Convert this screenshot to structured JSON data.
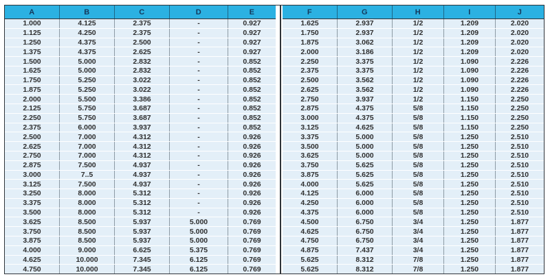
{
  "table": {
    "title": "dimension-spec-table",
    "headers": [
      "A",
      "B",
      "C",
      "D",
      "E",
      "F",
      "G",
      "H",
      "I",
      "J"
    ],
    "rows": [
      [
        "1.000",
        "4.125",
        "2.375",
        "-",
        "0.927",
        "1.625",
        "2.937",
        "1/2",
        "1.209",
        "2.020"
      ],
      [
        "1.125",
        "4.250",
        "2.375",
        "-",
        "0.927",
        "1.750",
        "2.937",
        "1/2",
        "1.209",
        "2.020"
      ],
      [
        "1.250",
        "4.375",
        "2.500",
        "-",
        "0.927",
        "1.875",
        "3.062",
        "1/2",
        "1.209",
        "2.020"
      ],
      [
        "1.375",
        "4.375",
        "2.625",
        "-",
        "0.927",
        "2.000",
        "3.186",
        "1/2",
        "1.209",
        "2.020"
      ],
      [
        "1.500",
        "5.000",
        "2.832",
        "-",
        "0.852",
        "2.250",
        "3.375",
        "1/2",
        "1.090",
        "2.226"
      ],
      [
        "1.625",
        "5.000",
        "2.832",
        "-",
        "0.852",
        "2.375",
        "3.375",
        "1/2",
        "1.090",
        "2.226"
      ],
      [
        "1.750",
        "5.250",
        "3.022",
        "-",
        "0.852",
        "2.500",
        "3.562",
        "1/2",
        "1.090",
        "2.226"
      ],
      [
        "1.875",
        "5.250",
        "3.022",
        "-",
        "0.852",
        "2.625",
        "3.562",
        "1/2",
        "1.090",
        "2.226"
      ],
      [
        "2.000",
        "5.500",
        "3.386",
        "-",
        "0.852",
        "2.750",
        "3.937",
        "1/2",
        "1.150",
        "2.250"
      ],
      [
        "2.125",
        "5.750",
        "3.687",
        "-",
        "0.852",
        "2.875",
        "4.375",
        "5/8",
        "1.150",
        "2.250"
      ],
      [
        "2.250",
        "5.750",
        "3.687",
        "-",
        "0.852",
        "3.000",
        "4.375",
        "5/8",
        "1.150",
        "2.250"
      ],
      [
        "2.375",
        "6.000",
        "3.937",
        "-",
        "0.852",
        "3.125",
        "4.625",
        "5/8",
        "1.150",
        "2.250"
      ],
      [
        "2.500",
        "7.000",
        "4.312",
        "-",
        "0.926",
        "3.375",
        "5.000",
        "5/8",
        "1.250",
        "2.510"
      ],
      [
        "2.625",
        "7.000",
        "4.312",
        "-",
        "0.926",
        "3.500",
        "5.000",
        "5/8",
        "1.250",
        "2.510"
      ],
      [
        "2.750",
        "7.000",
        "4.312",
        "-",
        "0.926",
        "3.625",
        "5.000",
        "5/8",
        "1.250",
        "2.510"
      ],
      [
        "2.875",
        "7.500",
        "4.937",
        "-",
        "0.926",
        "3.750",
        "5.625",
        "5/8",
        "1.250",
        "2.510"
      ],
      [
        "3.000",
        "7..5",
        "4.937",
        "-",
        "0.926",
        "3.875",
        "5.625",
        "5/8",
        "1.250",
        "2.510"
      ],
      [
        "3.125",
        "7.500",
        "4.937",
        "-",
        "0.926",
        "4.000",
        "5.625",
        "5/8",
        "1.250",
        "2.510"
      ],
      [
        "3.250",
        "8.000",
        "5.312",
        "-",
        "0.926",
        "4.125",
        "6.000",
        "5/8",
        "1.250",
        "2.510"
      ],
      [
        "3.375",
        "8.000",
        "5.312",
        "-",
        "0.926",
        "4.250",
        "6.000",
        "5/8",
        "1.250",
        "2.510"
      ],
      [
        "3.500",
        "8.000",
        "5.312",
        "-",
        "0.926",
        "4.375",
        "6.000",
        "5/8",
        "1.250",
        "2.510"
      ],
      [
        "3.625",
        "8.500",
        "5.937",
        "5.000",
        "0.769",
        "4.500",
        "6.750",
        "3/4",
        "1.250",
        "1.877"
      ],
      [
        "3.750",
        "8.500",
        "5.937",
        "5.000",
        "0.769",
        "4.625",
        "6.750",
        "3/4",
        "1.250",
        "1.877"
      ],
      [
        "3.875",
        "8.500",
        "5.937",
        "5.000",
        "0.769",
        "4.750",
        "6.750",
        "3/4",
        "1.250",
        "1.877"
      ],
      [
        "4.000",
        "9.000",
        "6.625",
        "5.375",
        "0.769",
        "4.875",
        "7.437",
        "3/4",
        "1.250",
        "1.877"
      ],
      [
        "4.625",
        "10.000",
        "7.345",
        "6.125",
        "0.769",
        "5.625",
        "8.312",
        "7/8",
        "1.250",
        "1.877"
      ],
      [
        "4.750",
        "10.000",
        "7.345",
        "6.125",
        "0.769",
        "5.625",
        "8.312",
        "7/8",
        "1.250",
        "1.877"
      ]
    ],
    "colors": {
      "header_bg": "#2bb1e2",
      "header_text": "#14395c",
      "row_bg": "#e3eff8",
      "row_divider": "#ffffff",
      "col_divider": "#8d9aa4",
      "frame_border": "#2e3338",
      "body_text": "#2f2f2f"
    }
  }
}
